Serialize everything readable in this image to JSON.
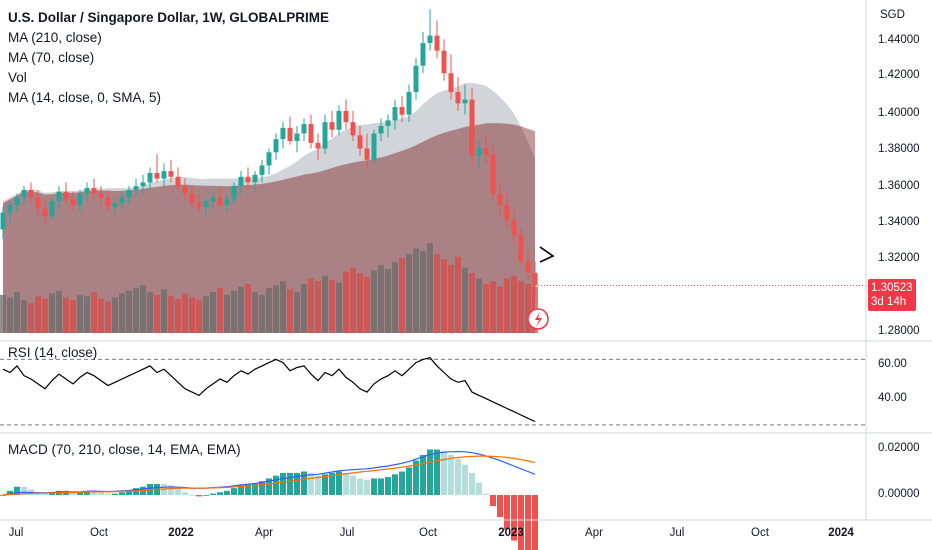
{
  "legend": {
    "title": "U.S. Dollar / Singapore Dollar, 1W, GLOBALPRIME",
    "lines": [
      "MA (210, close)",
      "MA (70, close)",
      "Vol",
      "MA (14, close, 0, SMA, 5)"
    ]
  },
  "price_axis": {
    "currency": "SGD",
    "ticks": [
      "1.44000",
      "1.42000",
      "1.40000",
      "1.38000",
      "1.36000",
      "1.34000",
      "1.32000",
      "1.28000"
    ],
    "last_price": "1.30523",
    "countdown": "3d 14h"
  },
  "rsi": {
    "label": "RSI (14, close)",
    "ticks": [
      "60.00",
      "40.00"
    ]
  },
  "macd": {
    "label": "MACD (70, 210, close, 14, EMA, EMA)",
    "ticks": [
      "0.02000",
      "0.00000"
    ]
  },
  "time_axis": {
    "labels": [
      "Jul",
      "Oct",
      "2022",
      "Apr",
      "Jul",
      "Oct",
      "2023",
      "Apr",
      "Jul",
      "Oct",
      "2024"
    ]
  },
  "colors": {
    "up": "#26a69a",
    "down": "#ef5350",
    "ma_slow_fill": "#7b1f1f",
    "ma_fast_fill": "#9aa0aa",
    "rsi_line": "#000000",
    "macd_line": "#2962ff",
    "signal_line": "#ff6d00"
  },
  "chart_data": {
    "type": "candlestick",
    "timeframe": "1W",
    "ylim": [
      1.28,
      1.45
    ],
    "candles": [
      [
        1.335,
        1.347,
        1.33,
        1.344
      ],
      [
        1.344,
        1.35,
        1.338,
        1.348
      ],
      [
        1.348,
        1.354,
        1.344,
        1.352
      ],
      [
        1.352,
        1.358,
        1.348,
        1.356
      ],
      [
        1.356,
        1.36,
        1.35,
        1.352
      ],
      [
        1.352,
        1.356,
        1.342,
        1.346
      ],
      [
        1.346,
        1.35,
        1.338,
        1.342
      ],
      [
        1.342,
        1.352,
        1.34,
        1.35
      ],
      [
        1.35,
        1.358,
        1.346,
        1.355
      ],
      [
        1.355,
        1.36,
        1.348,
        1.351
      ],
      [
        1.351,
        1.355,
        1.345,
        1.348
      ],
      [
        1.348,
        1.356,
        1.344,
        1.354
      ],
      [
        1.354,
        1.36,
        1.35,
        1.357
      ],
      [
        1.357,
        1.362,
        1.352,
        1.354
      ],
      [
        1.354,
        1.358,
        1.348,
        1.352
      ],
      [
        1.352,
        1.356,
        1.344,
        1.347
      ],
      [
        1.347,
        1.352,
        1.343,
        1.349
      ],
      [
        1.349,
        1.355,
        1.346,
        1.352
      ],
      [
        1.352,
        1.358,
        1.348,
        1.356
      ],
      [
        1.356,
        1.362,
        1.352,
        1.358
      ],
      [
        1.358,
        1.364,
        1.354,
        1.36
      ],
      [
        1.36,
        1.368,
        1.356,
        1.365
      ],
      [
        1.365,
        1.375,
        1.36,
        1.362
      ],
      [
        1.362,
        1.37,
        1.358,
        1.366
      ],
      [
        1.366,
        1.372,
        1.36,
        1.363
      ],
      [
        1.363,
        1.368,
        1.355,
        1.358
      ],
      [
        1.358,
        1.362,
        1.35,
        1.354
      ],
      [
        1.354,
        1.358,
        1.346,
        1.349
      ],
      [
        1.349,
        1.354,
        1.344,
        1.347
      ],
      [
        1.347,
        1.352,
        1.342,
        1.35
      ],
      [
        1.35,
        1.356,
        1.346,
        1.352
      ],
      [
        1.352,
        1.358,
        1.346,
        1.348
      ],
      [
        1.348,
        1.354,
        1.344,
        1.351
      ],
      [
        1.351,
        1.36,
        1.348,
        1.358
      ],
      [
        1.358,
        1.366,
        1.354,
        1.363
      ],
      [
        1.363,
        1.368,
        1.356,
        1.36
      ],
      [
        1.36,
        1.366,
        1.355,
        1.364
      ],
      [
        1.364,
        1.372,
        1.36,
        1.369
      ],
      [
        1.369,
        1.378,
        1.364,
        1.376
      ],
      [
        1.376,
        1.386,
        1.372,
        1.383
      ],
      [
        1.383,
        1.392,
        1.378,
        1.389
      ],
      [
        1.389,
        1.395,
        1.38,
        1.382
      ],
      [
        1.382,
        1.39,
        1.376,
        1.386
      ],
      [
        1.386,
        1.394,
        1.382,
        1.391
      ],
      [
        1.391,
        1.396,
        1.378,
        1.381
      ],
      [
        1.381,
        1.386,
        1.372,
        1.378
      ],
      [
        1.378,
        1.396,
        1.375,
        1.392
      ],
      [
        1.392,
        1.398,
        1.384,
        1.388
      ],
      [
        1.388,
        1.401,
        1.385,
        1.398
      ],
      [
        1.398,
        1.404,
        1.388,
        1.392
      ],
      [
        1.392,
        1.398,
        1.382,
        1.385
      ],
      [
        1.385,
        1.39,
        1.374,
        1.378
      ],
      [
        1.378,
        1.386,
        1.368,
        1.372
      ],
      [
        1.372,
        1.388,
        1.37,
        1.386
      ],
      [
        1.386,
        1.394,
        1.382,
        1.39
      ],
      [
        1.39,
        1.396,
        1.384,
        1.393
      ],
      [
        1.393,
        1.404,
        1.388,
        1.4
      ],
      [
        1.4,
        1.406,
        1.392,
        1.396
      ],
      [
        1.396,
        1.412,
        1.392,
        1.408
      ],
      [
        1.408,
        1.426,
        1.404,
        1.422
      ],
      [
        1.422,
        1.44,
        1.418,
        1.434
      ],
      [
        1.434,
        1.452,
        1.43,
        1.438
      ],
      [
        1.438,
        1.446,
        1.426,
        1.43
      ],
      [
        1.43,
        1.436,
        1.414,
        1.418
      ],
      [
        1.418,
        1.428,
        1.404,
        1.408
      ],
      [
        1.408,
        1.416,
        1.398,
        1.402
      ],
      [
        1.402,
        1.412,
        1.396,
        1.404
      ],
      [
        1.404,
        1.41,
        1.37,
        1.374
      ],
      [
        1.374,
        1.382,
        1.368,
        1.378
      ],
      [
        1.378,
        1.386,
        1.37,
        1.375
      ],
      [
        1.375,
        1.38,
        1.35,
        1.354
      ],
      [
        1.354,
        1.36,
        1.342,
        1.348
      ],
      [
        1.348,
        1.354,
        1.336,
        1.34
      ],
      [
        1.34,
        1.346,
        1.328,
        1.332
      ],
      [
        1.332,
        1.336,
        1.316,
        1.318
      ],
      [
        1.318,
        1.324,
        1.308,
        1.312
      ],
      [
        1.312,
        1.318,
        1.3,
        1.30523
      ]
    ],
    "volume": [
      28,
      26,
      30,
      24,
      22,
      27,
      25,
      29,
      31,
      26,
      24,
      28,
      27,
      30,
      25,
      23,
      26,
      29,
      31,
      33,
      35,
      30,
      28,
      32,
      27,
      25,
      29,
      26,
      24,
      27,
      30,
      33,
      28,
      31,
      34,
      36,
      30,
      28,
      33,
      35,
      38,
      32,
      30,
      36,
      40,
      38,
      42,
      39,
      37,
      45,
      48,
      44,
      41,
      46,
      50,
      47,
      52,
      55,
      58,
      62,
      60,
      66,
      58,
      54,
      50,
      56,
      48,
      44,
      40,
      36,
      38,
      34,
      40,
      42,
      38,
      36,
      34
    ],
    "rsi": [
      64,
      62,
      66,
      60,
      58,
      55,
      52,
      57,
      61,
      58,
      55,
      59,
      62,
      60,
      57,
      54,
      56,
      58,
      60,
      62,
      64,
      66,
      62,
      64,
      60,
      56,
      52,
      50,
      48,
      52,
      55,
      58,
      56,
      60,
      63,
      61,
      64,
      66,
      68,
      70,
      68,
      63,
      65,
      66,
      61,
      57,
      62,
      60,
      64,
      59,
      56,
      52,
      50,
      55,
      58,
      60,
      63,
      60,
      64,
      68,
      70,
      71,
      66,
      62,
      58,
      56,
      57,
      50,
      48,
      46,
      44,
      42,
      40,
      38,
      36,
      34,
      32
    ],
    "macd": [
      0.0,
      0.0005,
      0.001,
      0.0012,
      0.0011,
      0.001,
      0.0009,
      0.0011,
      0.0013,
      0.0014,
      0.0013,
      0.0014,
      0.0016,
      0.0017,
      0.0016,
      0.0015,
      0.0016,
      0.0018,
      0.002,
      0.0023,
      0.0026,
      0.003,
      0.0032,
      0.0034,
      0.0035,
      0.0034,
      0.0032,
      0.003,
      0.0029,
      0.003,
      0.0032,
      0.0034,
      0.0036,
      0.004,
      0.0044,
      0.0047,
      0.005,
      0.0055,
      0.006,
      0.0066,
      0.0072,
      0.0076,
      0.008,
      0.0085,
      0.0088,
      0.009,
      0.0095,
      0.01,
      0.0105,
      0.0108,
      0.011,
      0.0112,
      0.0114,
      0.0118,
      0.0122,
      0.0126,
      0.0132,
      0.0138,
      0.0146,
      0.0156,
      0.0166,
      0.0176,
      0.0182,
      0.0186,
      0.0188,
      0.0189,
      0.0188,
      0.0184,
      0.0178,
      0.017,
      0.016,
      0.015,
      0.0138,
      0.0126,
      0.0114,
      0.0102,
      0.009
    ],
    "signal": [
      0.0,
      0.0002,
      0.0004,
      0.0006,
      0.0007,
      0.0008,
      0.0008,
      0.0009,
      0.001,
      0.0011,
      0.0011,
      0.0012,
      0.0013,
      0.0014,
      0.0014,
      0.0014,
      0.0015,
      0.0016,
      0.0017,
      0.0018,
      0.002,
      0.0022,
      0.0024,
      0.0026,
      0.0028,
      0.0029,
      0.003,
      0.003,
      0.003,
      0.003,
      0.0031,
      0.0032,
      0.0033,
      0.0035,
      0.0037,
      0.0039,
      0.0042,
      0.0045,
      0.0048,
      0.0052,
      0.0056,
      0.006,
      0.0064,
      0.0068,
      0.0072,
      0.0076,
      0.008,
      0.0084,
      0.0088,
      0.0092,
      0.0096,
      0.01,
      0.0103,
      0.0106,
      0.011,
      0.0113,
      0.0117,
      0.0121,
      0.0126,
      0.0131,
      0.0137,
      0.0143,
      0.0149,
      0.0154,
      0.0159,
      0.0163,
      0.0166,
      0.0168,
      0.0169,
      0.0169,
      0.0168,
      0.0166,
      0.0163,
      0.0159,
      0.0154,
      0.0148,
      0.0141
    ]
  }
}
